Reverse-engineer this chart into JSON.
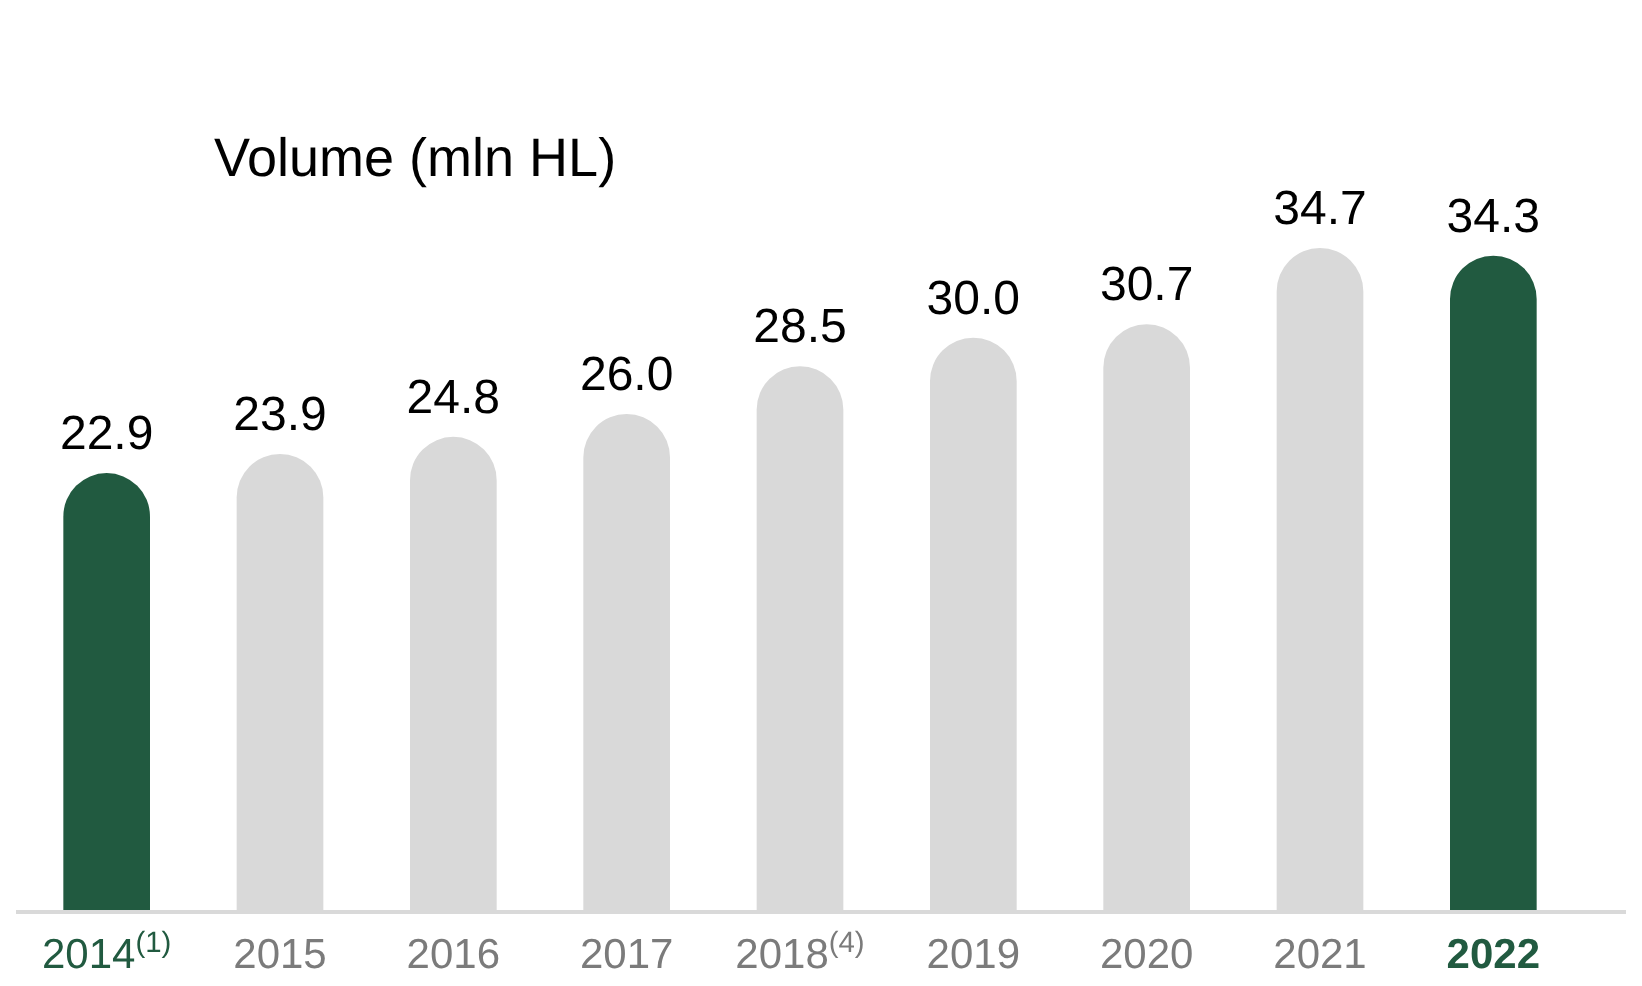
{
  "chart_data": {
    "type": "bar",
    "title": "Volume (mln HL)",
    "categories": [
      "2014$^{(1)}$",
      "2015",
      "2016",
      "2017",
      "2018$^{(4)}$",
      "2019",
      "2020",
      "2021",
      "2022"
    ],
    "values": [
      22.9,
      23.9,
      24.8,
      26.0,
      28.5,
      30.0,
      30.7,
      34.7,
      34.3
    ],
    "value_labels": [
      "22.9",
      "23.9",
      "24.8",
      "26.0",
      "28.5",
      "30.0",
      "30.7",
      "34.7",
      "34.3"
    ],
    "colors": [
      "#215a40",
      "#d9d9d9",
      "#d9d9d9",
      "#d9d9d9",
      "#d9d9d9",
      "#d9d9d9",
      "#d9d9d9",
      "#d9d9d9",
      "#215a40"
    ]
  }
}
